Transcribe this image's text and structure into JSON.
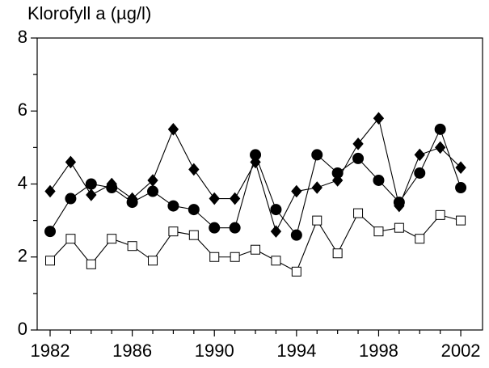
{
  "chart_data": {
    "type": "line",
    "title": "Klorofyll a (µg/l)",
    "x": [
      1982,
      1983,
      1984,
      1985,
      1986,
      1987,
      1988,
      1989,
      1990,
      1991,
      1992,
      1993,
      1994,
      1995,
      1996,
      1997,
      1998,
      1999,
      2000,
      2001,
      2002
    ],
    "series": [
      {
        "marker": "diamond",
        "color": "#000000",
        "fill": "#000000",
        "values": [
          3.8,
          4.6,
          3.7,
          4.0,
          3.6,
          4.1,
          5.5,
          4.4,
          3.6,
          3.6,
          4.6,
          2.7,
          3.8,
          3.9,
          4.1,
          5.1,
          5.8,
          3.4,
          4.8,
          5.0,
          4.45
        ]
      },
      {
        "marker": "circle",
        "color": "#000000",
        "fill": "#000000",
        "values": [
          2.7,
          3.6,
          4.0,
          3.9,
          3.5,
          3.8,
          3.4,
          3.3,
          2.8,
          2.8,
          4.8,
          3.3,
          2.6,
          4.8,
          4.3,
          4.7,
          4.1,
          3.5,
          4.3,
          5.5,
          3.9
        ]
      },
      {
        "marker": "square",
        "color": "#000000",
        "fill": "#ffffff",
        "values": [
          1.9,
          2.5,
          1.8,
          2.5,
          2.3,
          1.9,
          2.7,
          2.6,
          2.0,
          2.0,
          2.2,
          1.9,
          1.6,
          3.0,
          2.1,
          3.2,
          2.7,
          2.8,
          2.5,
          3.15,
          3.0
        ]
      }
    ],
    "xlim": [
      1981.37,
      2003.06
    ],
    "xticks": [
      1982,
      1986,
      1990,
      1994,
      1998,
      2002
    ],
    "xminor_ticks": [
      1983,
      1984,
      1985,
      1987,
      1988,
      1989,
      1991,
      1992,
      1993,
      1995,
      1996,
      1997,
      1999,
      2000,
      2001
    ],
    "ylim": [
      0,
      8
    ],
    "yticks": [
      0,
      2,
      4,
      6,
      8
    ],
    "yminor_ticks": [
      1,
      3,
      5,
      7
    ]
  }
}
